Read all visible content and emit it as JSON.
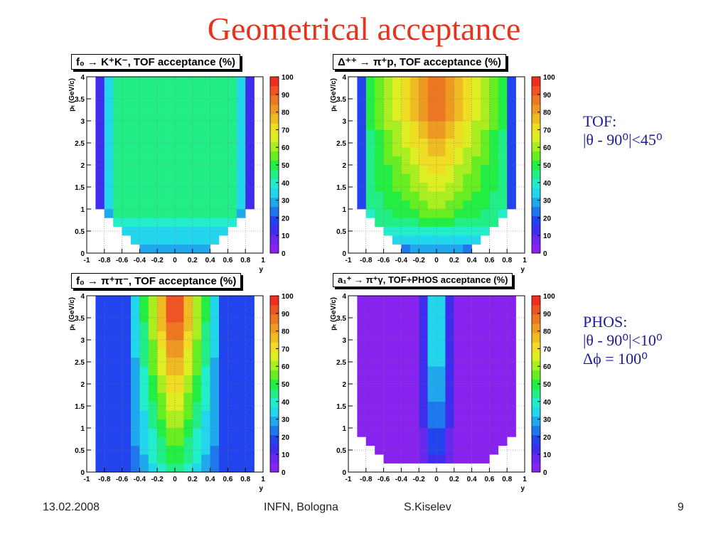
{
  "slide": {
    "title": "Geometrical acceptance",
    "footer": {
      "date": "13.02.2008",
      "venue": "INFN, Bologna",
      "author": "S.Kiselev",
      "page": "9"
    }
  },
  "notes": {
    "tof": {
      "heading": "TOF:",
      "line1": "|θ - 90⁰|<45⁰"
    },
    "phos": {
      "heading": "PHOS:",
      "line1": "|θ - 90⁰|<10⁰",
      "line2": "Δϕ = 100⁰"
    }
  },
  "palette": [
    "#8822ee",
    "#6a28ee",
    "#3f2cec",
    "#2244ee",
    "#1f77ee",
    "#1fa8ee",
    "#22d6ee",
    "#22eecc",
    "#22ee88",
    "#22ee44",
    "#66ee22",
    "#aaee22",
    "#ddee22",
    "#eedd22",
    "#eebb22",
    "#ee9922",
    "#ee7722",
    "#ee5522",
    "#ee2e22"
  ],
  "chart_data": [
    {
      "type": "heatmap",
      "title": "f₀ → K⁺K⁻, TOF acceptance (%)",
      "xlabel": "y",
      "ylabel": "pₜ (GeV/c)",
      "xlim": [
        -1,
        1
      ],
      "ylim": [
        0,
        4
      ],
      "zlim": [
        0,
        100
      ],
      "xticks": [
        "-1",
        "-0.8",
        "-0.6",
        "-0.4",
        "-0.2",
        "0",
        "0.2",
        "0.4",
        "0.6",
        "0.8",
        "1"
      ],
      "yticks": [
        "0",
        "0.5",
        "1",
        "1.5",
        "2",
        "2.5",
        "3",
        "3.5",
        "4"
      ],
      "zticks": [
        "0",
        "10",
        "20",
        "30",
        "40",
        "50",
        "60",
        "70",
        "80",
        "90",
        "100"
      ],
      "grid": true,
      "x_bins": 20,
      "y_bins": 20,
      "model": {
        "core_value": 44,
        "core_width": 0.8,
        "core_min_y": 0.0,
        "shape": "bowl",
        "edge_value": 5,
        "edge_pt_scale": 0.45
      }
    },
    {
      "type": "heatmap",
      "title": "Δ⁺⁺ → π⁺p, TOF acceptance (%)",
      "xlabel": "y",
      "ylabel": "pₜ (GeV/c)",
      "xlim": [
        -1,
        1
      ],
      "ylim": [
        0,
        4
      ],
      "zlim": [
        0,
        100
      ],
      "xticks": [
        "-1",
        "-0.8",
        "-0.6",
        "-0.4",
        "-0.2",
        "0",
        "0.2",
        "0.4",
        "0.6",
        "0.8",
        "1"
      ],
      "yticks": [
        "0",
        "0.5",
        "1",
        "1.5",
        "2",
        "2.5",
        "3",
        "3.5",
        "4"
      ],
      "zticks": [
        "0",
        "10",
        "20",
        "30",
        "40",
        "50",
        "60",
        "70",
        "80",
        "90",
        "100"
      ],
      "grid": true,
      "x_bins": 20,
      "y_bins": 20,
      "model": {
        "core_value": 88,
        "core_width": 0.45,
        "core_min_y": 0.0,
        "shape": "bowl",
        "edge_value": 5,
        "edge_pt_scale": 0.45
      }
    },
    {
      "type": "heatmap",
      "title": "f₀ → π⁺π⁻, TOF acceptance (%)",
      "xlabel": "y",
      "ylabel": "pₜ (GeV/c)",
      "xlim": [
        -1,
        1
      ],
      "ylim": [
        0,
        4
      ],
      "zlim": [
        0,
        100
      ],
      "xticks": [
        "-1",
        "-0.8",
        "-0.6",
        "-0.4",
        "-0.2",
        "0",
        "0.2",
        "0.4",
        "0.6",
        "0.8",
        "1"
      ],
      "yticks": [
        "0",
        "0.5",
        "1",
        "1.5",
        "2",
        "2.5",
        "3",
        "3.5",
        "4"
      ],
      "zticks": [
        "0",
        "10",
        "20",
        "30",
        "40",
        "50",
        "60",
        "70",
        "80",
        "90",
        "100"
      ],
      "grid": true,
      "x_bins": 20,
      "y_bins": 20,
      "model": {
        "core_value": 97,
        "core_width": 0.55,
        "core_min_y": 0.0,
        "shape": "column",
        "edge_value": 20,
        "edge_pt_scale": 0
      }
    },
    {
      "type": "heatmap",
      "title": "a₁⁺ → π⁺γ, TOF+PHOS acceptance (%)",
      "xlabel": "y",
      "ylabel": "pₜ (GeV/c)",
      "xlim": [
        -1,
        1
      ],
      "ylim": [
        0,
        4
      ],
      "zlim": [
        0,
        100
      ],
      "xticks": [
        "-1",
        "-0.8",
        "-0.6",
        "-0.4",
        "-0.2",
        "0",
        "0.2",
        "0.4",
        "0.6",
        "0.8",
        "1"
      ],
      "yticks": [
        "0",
        "0.5",
        "1",
        "1.5",
        "2",
        "2.5",
        "3",
        "3.5",
        "4"
      ],
      "zticks": [
        "0",
        "10",
        "20",
        "30",
        "40",
        "50",
        "60",
        "70",
        "80",
        "90",
        "100"
      ],
      "grid": true,
      "x_bins": 20,
      "y_bins": 20,
      "model": {
        "core_value": 42,
        "core_width": 0.22,
        "core_min_y": 0.0,
        "shape": "phos",
        "edge_value": 3,
        "edge_pt_scale": 0.3
      }
    }
  ]
}
